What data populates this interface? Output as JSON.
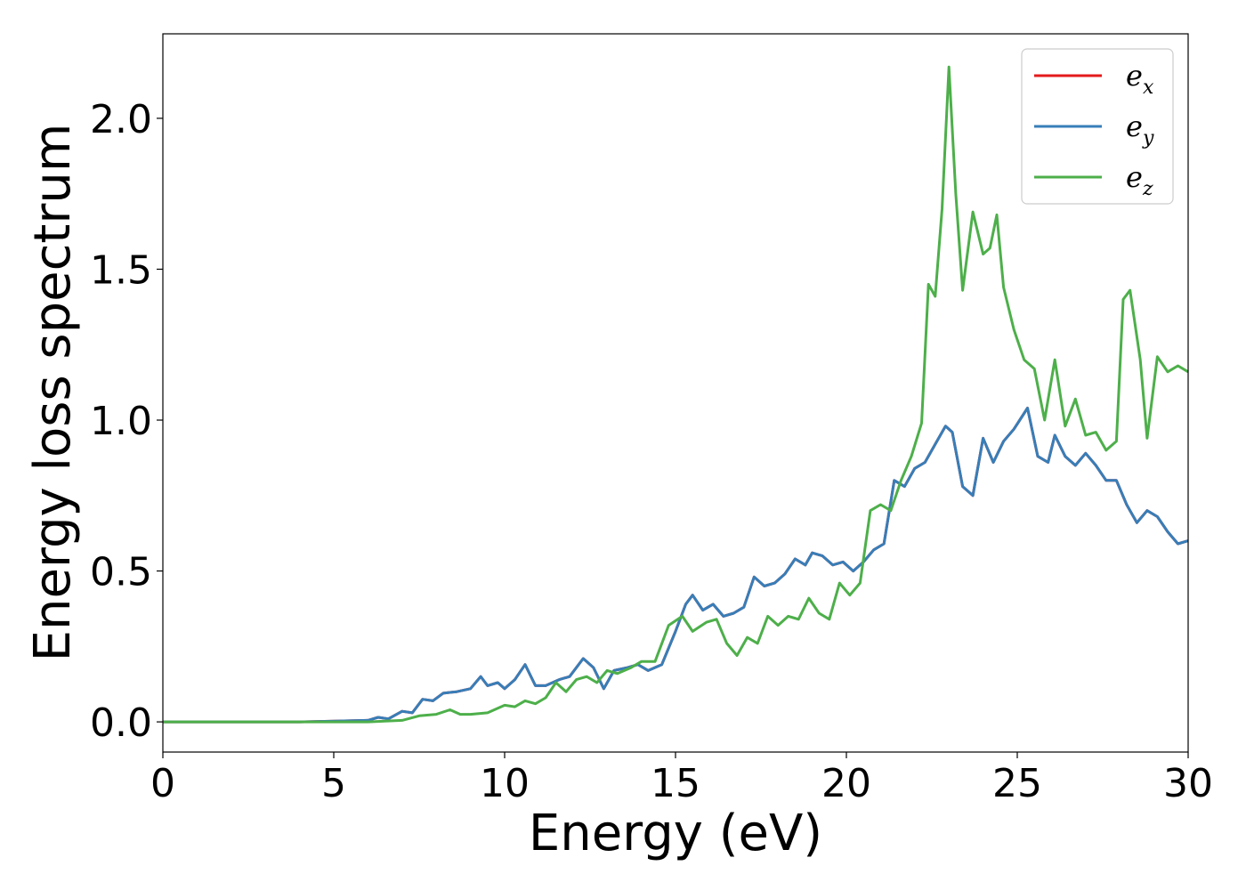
{
  "chart_data": {
    "type": "line",
    "title": "",
    "xlabel": "Energy (eV)",
    "ylabel": "Energy loss spectrum",
    "xlim": [
      0,
      30
    ],
    "ylim": [
      -0.1,
      2.28
    ],
    "xticks": [
      0,
      5,
      10,
      15,
      20,
      25,
      30
    ],
    "xtick_labels": [
      "0",
      "5",
      "10",
      "15",
      "20",
      "25",
      "30"
    ],
    "yticks": [
      0.0,
      0.5,
      1.0,
      1.5,
      2.0
    ],
    "ytick_labels": [
      "0.0",
      "0.5",
      "1.0",
      "1.5",
      "2.0"
    ],
    "grid": false,
    "legend_position": "top-right",
    "series": [
      {
        "name": "e_x",
        "label_main": "e",
        "label_sub": "x",
        "color": "#e41a1c",
        "note_hidden_behind": "e_y",
        "x": [
          0,
          4,
          6,
          6.3,
          6.6,
          7.0,
          7.3,
          7.6,
          7.9,
          8.2,
          8.6,
          9.0,
          9.3,
          9.5,
          9.8,
          10.0,
          10.3,
          10.6,
          10.9,
          11.2,
          11.6,
          11.9,
          12.3,
          12.6,
          12.9,
          13.2,
          13.6,
          13.9,
          14.2,
          14.6,
          15.0,
          15.3,
          15.5,
          15.8,
          16.1,
          16.4,
          16.7,
          17.0,
          17.3,
          17.6,
          17.9,
          18.2,
          18.5,
          18.8,
          19.0,
          19.3,
          19.6,
          19.9,
          20.2,
          20.5,
          20.8,
          21.1,
          21.4,
          21.7,
          22.0,
          22.3,
          22.6,
          22.9,
          23.1,
          23.4,
          23.7,
          24.0,
          24.3,
          24.6,
          24.9,
          25.3,
          25.6,
          25.9,
          26.1,
          26.4,
          26.7,
          27.0,
          27.3,
          27.6,
          27.9,
          28.2,
          28.5,
          28.8,
          29.1,
          29.4,
          29.7,
          30.0
        ],
        "y": [
          0.0,
          0.0,
          0.005,
          0.015,
          0.01,
          0.035,
          0.03,
          0.075,
          0.07,
          0.095,
          0.1,
          0.11,
          0.15,
          0.12,
          0.13,
          0.11,
          0.14,
          0.19,
          0.12,
          0.12,
          0.14,
          0.15,
          0.21,
          0.18,
          0.11,
          0.17,
          0.18,
          0.19,
          0.17,
          0.19,
          0.3,
          0.39,
          0.42,
          0.37,
          0.39,
          0.35,
          0.36,
          0.38,
          0.48,
          0.45,
          0.46,
          0.49,
          0.54,
          0.52,
          0.56,
          0.55,
          0.52,
          0.53,
          0.5,
          0.53,
          0.57,
          0.59,
          0.8,
          0.78,
          0.84,
          0.86,
          0.92,
          0.98,
          0.96,
          0.78,
          0.75,
          0.94,
          0.86,
          0.93,
          0.97,
          1.04,
          0.88,
          0.86,
          0.95,
          0.88,
          0.85,
          0.89,
          0.85,
          0.8,
          0.8,
          0.72,
          0.66,
          0.7,
          0.68,
          0.63,
          0.59,
          0.6
        ]
      },
      {
        "name": "e_y",
        "label_main": "e",
        "label_sub": "y",
        "color": "#377eb8",
        "x": [
          0,
          4,
          6,
          6.3,
          6.6,
          7.0,
          7.3,
          7.6,
          7.9,
          8.2,
          8.6,
          9.0,
          9.3,
          9.5,
          9.8,
          10.0,
          10.3,
          10.6,
          10.9,
          11.2,
          11.6,
          11.9,
          12.3,
          12.6,
          12.9,
          13.2,
          13.6,
          13.9,
          14.2,
          14.6,
          15.0,
          15.3,
          15.5,
          15.8,
          16.1,
          16.4,
          16.7,
          17.0,
          17.3,
          17.6,
          17.9,
          18.2,
          18.5,
          18.8,
          19.0,
          19.3,
          19.6,
          19.9,
          20.2,
          20.5,
          20.8,
          21.1,
          21.4,
          21.7,
          22.0,
          22.3,
          22.6,
          22.9,
          23.1,
          23.4,
          23.7,
          24.0,
          24.3,
          24.6,
          24.9,
          25.3,
          25.6,
          25.9,
          26.1,
          26.4,
          26.7,
          27.0,
          27.3,
          27.6,
          27.9,
          28.2,
          28.5,
          28.8,
          29.1,
          29.4,
          29.7,
          30.0
        ],
        "y": [
          0.0,
          0.0,
          0.005,
          0.015,
          0.01,
          0.035,
          0.03,
          0.075,
          0.07,
          0.095,
          0.1,
          0.11,
          0.15,
          0.12,
          0.13,
          0.11,
          0.14,
          0.19,
          0.12,
          0.12,
          0.14,
          0.15,
          0.21,
          0.18,
          0.11,
          0.17,
          0.18,
          0.19,
          0.17,
          0.19,
          0.3,
          0.39,
          0.42,
          0.37,
          0.39,
          0.35,
          0.36,
          0.38,
          0.48,
          0.45,
          0.46,
          0.49,
          0.54,
          0.52,
          0.56,
          0.55,
          0.52,
          0.53,
          0.5,
          0.53,
          0.57,
          0.59,
          0.8,
          0.78,
          0.84,
          0.86,
          0.92,
          0.98,
          0.96,
          0.78,
          0.75,
          0.94,
          0.86,
          0.93,
          0.97,
          1.04,
          0.88,
          0.86,
          0.95,
          0.88,
          0.85,
          0.89,
          0.85,
          0.8,
          0.8,
          0.72,
          0.66,
          0.7,
          0.68,
          0.63,
          0.59,
          0.6
        ]
      },
      {
        "name": "e_z",
        "label_main": "e",
        "label_sub": "z",
        "color": "#4daf4a",
        "x": [
          0,
          6,
          7.0,
          7.5,
          8.0,
          8.4,
          8.7,
          9.0,
          9.5,
          10.0,
          10.3,
          10.6,
          10.9,
          11.2,
          11.5,
          11.8,
          12.1,
          12.4,
          12.7,
          13.0,
          13.3,
          13.7,
          14.0,
          14.4,
          14.8,
          15.2,
          15.5,
          15.9,
          16.2,
          16.5,
          16.8,
          17.1,
          17.4,
          17.7,
          18.0,
          18.3,
          18.6,
          18.9,
          19.2,
          19.5,
          19.8,
          20.1,
          20.4,
          20.7,
          21.0,
          21.3,
          21.6,
          21.9,
          22.2,
          22.4,
          22.6,
          22.8,
          23.0,
          23.2,
          23.4,
          23.7,
          24.0,
          24.2,
          24.4,
          24.6,
          24.9,
          25.2,
          25.5,
          25.8,
          26.1,
          26.4,
          26.7,
          27.0,
          27.3,
          27.6,
          27.9,
          28.1,
          28.3,
          28.6,
          28.8,
          29.1,
          29.4,
          29.7,
          30.0
        ],
        "y": [
          0.0,
          0.0,
          0.005,
          0.02,
          0.025,
          0.04,
          0.025,
          0.025,
          0.03,
          0.055,
          0.05,
          0.07,
          0.06,
          0.08,
          0.13,
          0.1,
          0.14,
          0.15,
          0.13,
          0.17,
          0.16,
          0.18,
          0.2,
          0.2,
          0.32,
          0.35,
          0.3,
          0.33,
          0.34,
          0.26,
          0.22,
          0.28,
          0.26,
          0.35,
          0.32,
          0.35,
          0.34,
          0.41,
          0.36,
          0.34,
          0.46,
          0.42,
          0.46,
          0.7,
          0.72,
          0.7,
          0.8,
          0.88,
          0.99,
          1.45,
          1.41,
          1.7,
          2.17,
          1.75,
          1.43,
          1.69,
          1.55,
          1.57,
          1.68,
          1.44,
          1.3,
          1.2,
          1.17,
          1.0,
          1.2,
          0.98,
          1.07,
          0.95,
          0.96,
          0.9,
          0.93,
          1.4,
          1.43,
          1.2,
          0.94,
          1.21,
          1.16,
          1.18,
          1.16
        ]
      }
    ]
  }
}
